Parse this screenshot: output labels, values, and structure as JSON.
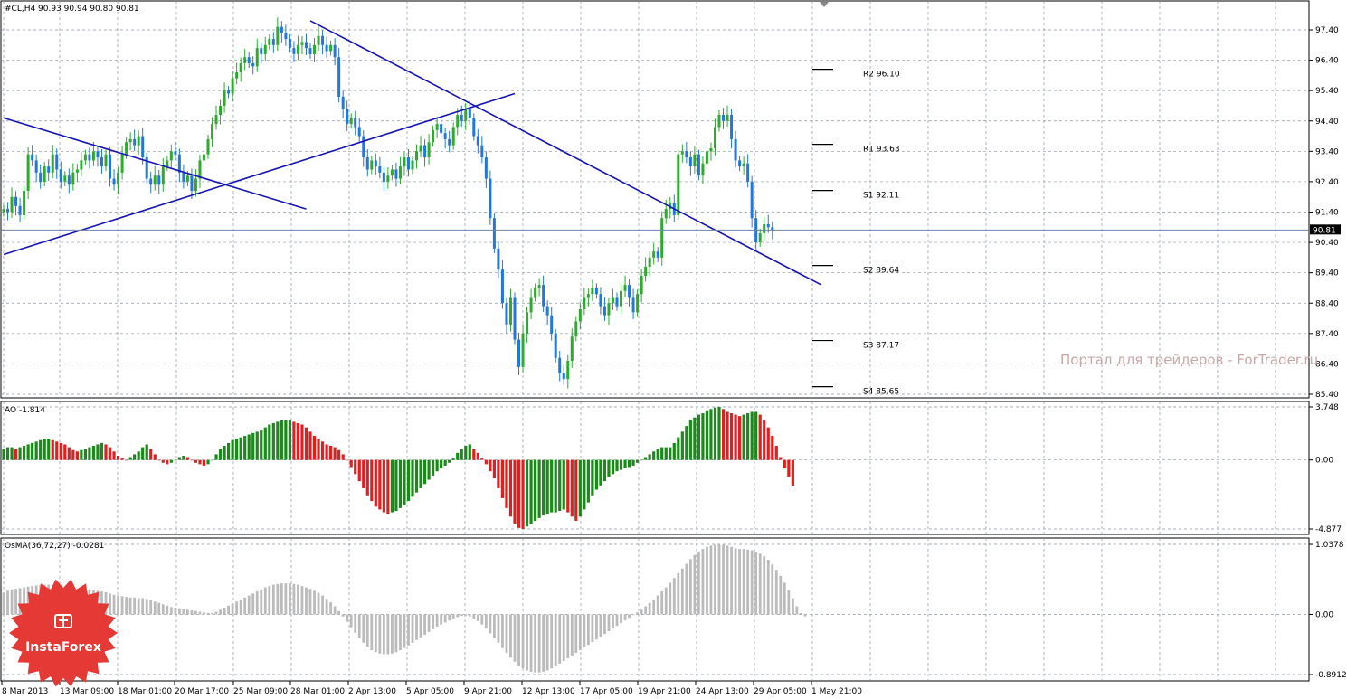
{
  "header": {
    "symbol_line": "#CL,H4  90.93 90.94 90.80 90.81",
    "ao_label": "AO -1.814",
    "osma_label": "OsMA(36,72,27) -0.0281"
  },
  "price_axis": {
    "ticks": [
      "97.40",
      "96.40",
      "95.40",
      "94.40",
      "93.40",
      "92.40",
      "91.40",
      "90.40",
      "89.40",
      "88.40",
      "87.40",
      "86.40",
      "85.40"
    ],
    "current_price": "90.81"
  },
  "ao_axis": {
    "ticks": [
      "3.748",
      "0.00",
      "-4.877"
    ]
  },
  "osma_axis": {
    "ticks": [
      "1.0378",
      "0.00",
      "-0.8912"
    ]
  },
  "time_axis": {
    "ticks": [
      "8 Mar 2013",
      "13 Mar 09:00",
      "18 Mar 01:00",
      "20 Mar 17:00",
      "25 Mar 09:00",
      "28 Mar 01:00",
      "2 Apr 13:00",
      "5 Apr 05:00",
      "9 Apr 21:00",
      "12 Apr 13:00",
      "17 Apr 05:00",
      "19 Apr 21:00",
      "24 Apr 13:00",
      "29 Apr 05:00",
      "1 May 21:00"
    ]
  },
  "pivots": [
    {
      "label": "R2 96.10",
      "value": 96.1
    },
    {
      "label": "R1 93.63",
      "value": 93.63
    },
    {
      "label": "S1 92.11",
      "value": 92.11
    },
    {
      "label": "S2 89.64",
      "value": 89.64
    },
    {
      "label": "S3 87.17",
      "value": 87.17
    },
    {
      "label": "S4 85.65",
      "value": 85.65
    }
  ],
  "watermark": "Портал для трейдеров - ForTrader.ru",
  "logo": {
    "text": "InstaForex",
    "color": "#e53935"
  },
  "colors": {
    "bull": "#2eaa2e",
    "bear": "#2277dd",
    "ao_up": "#1b8a1b",
    "ao_down": "#e02020",
    "osma": "#bbbbbb",
    "trend": "#1515b0",
    "grid": "#8899aa"
  },
  "chart_data": {
    "type": "candlestick",
    "symbol": "#CL",
    "timeframe": "H4",
    "ylim": [
      85.4,
      97.9
    ],
    "closes": [
      91.5,
      91.4,
      91.9,
      91.6,
      91.3,
      92.1,
      93.3,
      93.1,
      92.7,
      92.4,
      92.9,
      92.7,
      93.3,
      92.8,
      92.4,
      92.6,
      92.3,
      92.7,
      92.8,
      93.1,
      93.3,
      93.1,
      93.4,
      93.2,
      92.9,
      93.3,
      92.5,
      92.3,
      92.7,
      93.3,
      93.7,
      93.8,
      93.6,
      93.9,
      93.2,
      92.5,
      92.3,
      92.6,
      92.3,
      92.9,
      93.1,
      93.4,
      93.3,
      92.7,
      92.4,
      92.6,
      92.1,
      92.5,
      93.1,
      93.3,
      93.8,
      94.3,
      94.6,
      94.9,
      95.4,
      95.3,
      95.8,
      96.0,
      96.3,
      96.5,
      96.3,
      96.2,
      96.8,
      96.6,
      96.9,
      97.1,
      96.9,
      97.5,
      97.3,
      97.1,
      96.8,
      96.6,
      96.9,
      97.0,
      96.8,
      96.6,
      96.9,
      97.2,
      96.9,
      96.7,
      96.9,
      96.5,
      95.2,
      94.8,
      94.3,
      94.5,
      94.2,
      93.9,
      93.2,
      92.8,
      93.1,
      92.9,
      92.7,
      92.4,
      92.6,
      92.8,
      92.5,
      92.9,
      93.2,
      92.8,
      93.1,
      93.4,
      93.6,
      93.2,
      93.7,
      94.1,
      94.3,
      94.0,
      93.8,
      93.6,
      94.2,
      94.6,
      94.4,
      94.8,
      94.5,
      93.9,
      93.6,
      93.2,
      92.5,
      91.2,
      90.2,
      89.5,
      88.4,
      87.7,
      88.6,
      87.2,
      86.3,
      87.4,
      88.1,
      88.6,
      88.9,
      89.0,
      88.3,
      88.0,
      87.4,
      86.6,
      86.1,
      85.9,
      86.5,
      87.3,
      87.8,
      88.2,
      88.6,
      88.7,
      88.9,
      88.7,
      88.3,
      88.0,
      88.4,
      88.6,
      88.3,
      88.8,
      89.0,
      88.6,
      88.1,
      88.7,
      89.3,
      89.6,
      89.9,
      90.1,
      89.9,
      91.2,
      91.5,
      91.7,
      91.3,
      93.3,
      93.4,
      93.2,
      92.9,
      93.3,
      92.6,
      93.0,
      93.4,
      93.5,
      94.2,
      94.6,
      94.4,
      94.6,
      93.8,
      93.1,
      92.9,
      93.0,
      92.4,
      91.2,
      90.4,
      90.7,
      91.0,
      90.9,
      90.81
    ],
    "trendlines": [
      {
        "from": {
          "i": 0,
          "price": 94.5
        },
        "to": {
          "i": 74,
          "price": 91.5
        }
      },
      {
        "from": {
          "i": 0,
          "price": 90.0
        },
        "to": {
          "i": 125,
          "price": 95.3
        }
      },
      {
        "from": {
          "i": 75,
          "price": 97.7
        },
        "to": {
          "i": 200,
          "price": 89.0
        }
      }
    ],
    "ao": {
      "ylim": [
        -4.877,
        3.748
      ],
      "values": [
        0.8,
        0.9,
        0.9,
        0.8,
        0.9,
        1.0,
        1.1,
        1.2,
        1.3,
        1.4,
        1.5,
        1.5,
        1.4,
        1.3,
        1.2,
        1.1,
        0.9,
        0.7,
        0.6,
        0.7,
        0.8,
        0.9,
        1.0,
        1.1,
        1.2,
        1.1,
        0.9,
        0.6,
        0.3,
        0.1,
        0.0,
        0.2,
        0.4,
        0.6,
        0.9,
        1.1,
        0.8,
        0.4,
        0.0,
        -0.2,
        -0.3,
        -0.2,
        0.0,
        0.2,
        0.3,
        0.2,
        0.0,
        -0.2,
        -0.3,
        -0.4,
        -0.3,
        0.0,
        0.4,
        0.8,
        1.0,
        1.2,
        1.4,
        1.5,
        1.6,
        1.7,
        1.8,
        1.9,
        2.0,
        2.1,
        2.3,
        2.5,
        2.6,
        2.7,
        2.8,
        2.8,
        2.8,
        2.7,
        2.6,
        2.5,
        2.3,
        2.0,
        1.7,
        1.5,
        1.3,
        1.1,
        1.0,
        0.9,
        0.7,
        0.4,
        0.0,
        -0.5,
        -1.0,
        -1.5,
        -2.0,
        -2.5,
        -2.9,
        -3.3,
        -3.5,
        -3.7,
        -3.8,
        -3.7,
        -3.6,
        -3.4,
        -3.2,
        -2.9,
        -2.6,
        -2.3,
        -2.0,
        -1.7,
        -1.4,
        -1.1,
        -0.8,
        -0.6,
        -0.4,
        -0.2,
        0.1,
        0.5,
        0.8,
        1.0,
        1.1,
        0.8,
        0.5,
        0.1,
        -0.3,
        -0.8,
        -1.3,
        -2.0,
        -2.7,
        -3.4,
        -4.0,
        -4.5,
        -4.8,
        -4.877,
        -4.7,
        -4.5,
        -4.3,
        -4.1,
        -3.9,
        -3.8,
        -3.7,
        -3.7,
        -3.6,
        -3.5,
        -3.7,
        -4.0,
        -4.3,
        -4.0,
        -3.5,
        -3.0,
        -2.5,
        -2.1,
        -1.8,
        -1.5,
        -1.2,
        -1.0,
        -0.8,
        -0.7,
        -0.6,
        -0.5,
        -0.4,
        -0.2,
        0.0,
        0.2,
        0.4,
        0.6,
        0.8,
        0.9,
        0.9,
        0.9,
        1.2,
        1.6,
        2.0,
        2.4,
        2.8,
        3.0,
        3.2,
        3.3,
        3.5,
        3.6,
        3.7,
        3.748,
        3.6,
        3.4,
        3.3,
        3.2,
        3.1,
        3.2,
        3.3,
        3.4,
        3.4,
        3.2,
        2.8,
        2.3,
        1.7,
        1.0,
        0.2,
        -0.6,
        -1.2,
        -1.814
      ]
    },
    "osma": {
      "ylim": [
        -0.8912,
        1.0378
      ],
      "values": [
        0.32,
        0.35,
        0.37,
        0.38,
        0.39,
        0.4,
        0.41,
        0.42,
        0.43,
        0.44,
        0.44,
        0.44,
        0.43,
        0.42,
        0.41,
        0.4,
        0.39,
        0.38,
        0.37,
        0.37,
        0.37,
        0.37,
        0.36,
        0.35,
        0.34,
        0.33,
        0.31,
        0.29,
        0.28,
        0.27,
        0.26,
        0.25,
        0.25,
        0.24,
        0.24,
        0.23,
        0.21,
        0.19,
        0.17,
        0.15,
        0.13,
        0.11,
        0.1,
        0.09,
        0.08,
        0.07,
        0.06,
        0.05,
        0.04,
        0.03,
        0.02,
        0.02,
        0.04,
        0.07,
        0.1,
        0.13,
        0.16,
        0.19,
        0.22,
        0.25,
        0.28,
        0.31,
        0.34,
        0.37,
        0.4,
        0.42,
        0.44,
        0.45,
        0.46,
        0.46,
        0.46,
        0.45,
        0.44,
        0.42,
        0.4,
        0.38,
        0.35,
        0.32,
        0.28,
        0.23,
        0.18,
        0.12,
        0.05,
        -0.03,
        -0.11,
        -0.19,
        -0.27,
        -0.35,
        -0.42,
        -0.48,
        -0.53,
        -0.56,
        -0.58,
        -0.59,
        -0.59,
        -0.58,
        -0.56,
        -0.53,
        -0.5,
        -0.46,
        -0.42,
        -0.38,
        -0.34,
        -0.3,
        -0.26,
        -0.22,
        -0.18,
        -0.15,
        -0.12,
        -0.09,
        -0.06,
        -0.04,
        -0.02,
        -0.02,
        -0.03,
        -0.06,
        -0.1,
        -0.15,
        -0.21,
        -0.28,
        -0.35,
        -0.42,
        -0.5,
        -0.57,
        -0.64,
        -0.7,
        -0.76,
        -0.8,
        -0.83,
        -0.85,
        -0.86,
        -0.86,
        -0.85,
        -0.83,
        -0.8,
        -0.77,
        -0.73,
        -0.69,
        -0.65,
        -0.61,
        -0.57,
        -0.53,
        -0.49,
        -0.45,
        -0.41,
        -0.37,
        -0.33,
        -0.29,
        -0.25,
        -0.21,
        -0.17,
        -0.13,
        -0.09,
        -0.05,
        -0.01,
        0.03,
        0.07,
        0.12,
        0.17,
        0.22,
        0.28,
        0.34,
        0.4,
        0.47,
        0.54,
        0.61,
        0.68,
        0.75,
        0.82,
        0.88,
        0.93,
        0.97,
        1.0,
        1.02,
        1.03,
        1.0378,
        1.03,
        1.02,
        1.0,
        0.98,
        0.97,
        0.97,
        0.96,
        0.95,
        0.93,
        0.9,
        0.86,
        0.81,
        0.74,
        0.66,
        0.57,
        0.47,
        0.36,
        0.24,
        0.12,
        0.02,
        -0.0281
      ]
    }
  }
}
